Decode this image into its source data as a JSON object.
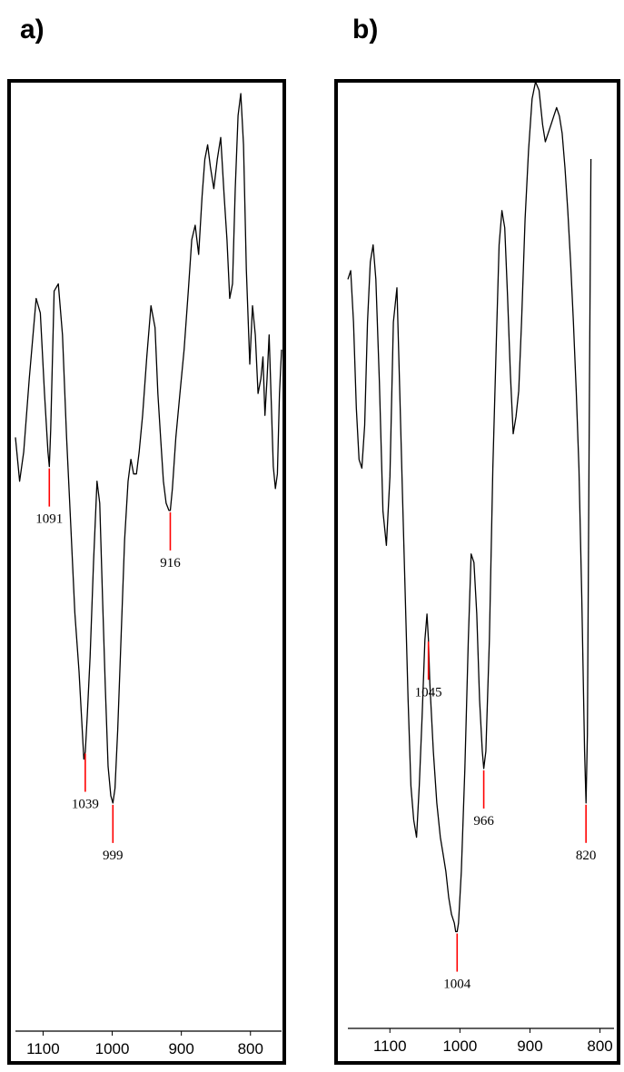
{
  "panels": [
    {
      "id": "a",
      "label": "a)"
    },
    {
      "id": "b",
      "label": "b)"
    }
  ],
  "chart_data": [
    {
      "type": "line",
      "panel": "a)",
      "title": "",
      "xlabel": "",
      "ylabel": "",
      "x_reversed": true,
      "xlim": [
        1140,
        755
      ],
      "xticks": [
        1100,
        1000,
        900,
        800
      ],
      "xtick_labels": [
        "1100",
        "1000",
        "900",
        "800"
      ],
      "y_axis_shown": false,
      "y_scale": "relative intensity 0-100",
      "line_color": "#000000",
      "peak_marker_color": "#ff0000",
      "peaks": [
        {
          "x": 1091,
          "label": "1091"
        },
        {
          "x": 1039,
          "label": "1039"
        },
        {
          "x": 999,
          "label": "999"
        },
        {
          "x": 916,
          "label": "916"
        }
      ],
      "series": [
        {
          "x": [
            1140,
            1134,
            1128,
            1120,
            1110,
            1104,
            1098,
            1093,
            1091,
            1089,
            1084,
            1078,
            1072,
            1066,
            1060,
            1054,
            1048,
            1044,
            1041,
            1039,
            1036,
            1032,
            1027,
            1022,
            1018,
            1014,
            1010,
            1006,
            1002,
            999,
            996,
            992,
            987,
            982,
            977,
            973,
            969,
            965,
            961,
            956,
            950,
            944,
            938,
            934,
            930,
            926,
            922,
            918,
            916,
            913,
            908,
            902,
            896,
            890,
            885,
            880,
            875,
            870,
            866,
            862,
            858,
            853,
            848,
            843,
            838,
            834,
            830,
            826,
            822,
            818,
            814,
            810,
            806,
            801,
            797,
            793,
            789,
            785,
            782,
            779,
            776,
            773,
            770,
            767,
            764,
            761,
            758,
            755
          ],
          "y": [
            52,
            46,
            50,
            60,
            71,
            69,
            58,
            50,
            48,
            53,
            72,
            73,
            66,
            52,
            40,
            28,
            20,
            13,
            8,
            9,
            14,
            22,
            35,
            46,
            43,
            30,
            18,
            7,
            3,
            2,
            4,
            12,
            25,
            38,
            46,
            49,
            47,
            47,
            50,
            55,
            63,
            70,
            67,
            58,
            52,
            46,
            43,
            42,
            42,
            45,
            52,
            58,
            64,
            72,
            79,
            81,
            77,
            85,
            90,
            92,
            89,
            86,
            90,
            93,
            85,
            79,
            71,
            73,
            86,
            96,
            99,
            92,
            75,
            62,
            70,
            66,
            58,
            60,
            63,
            55,
            60,
            66,
            57,
            48,
            45,
            47,
            58,
            64
          ]
        }
      ]
    },
    {
      "type": "line",
      "panel": "b)",
      "title": "",
      "xlabel": "",
      "ylabel": "",
      "x_reversed": true,
      "xlim": [
        1160,
        780
      ],
      "xticks": [
        1100,
        1000,
        900,
        800
      ],
      "xtick_labels": [
        "1100",
        "1000",
        "900",
        "800"
      ],
      "y_axis_shown": false,
      "y_scale": "relative intensity 0-100",
      "line_color": "#000000",
      "peak_marker_color": "#ff0000",
      "peaks": [
        {
          "x": 1045,
          "label": "1045"
        },
        {
          "x": 1004,
          "label": "1004"
        },
        {
          "x": 966,
          "label": "966"
        },
        {
          "x": 820,
          "label": "820"
        }
      ],
      "series": [
        {
          "x": [
            1160,
            1156,
            1152,
            1148,
            1144,
            1140,
            1136,
            1132,
            1128,
            1124,
            1120,
            1115,
            1110,
            1105,
            1100,
            1095,
            1090,
            1086,
            1082,
            1078,
            1074,
            1070,
            1066,
            1062,
            1058,
            1054,
            1050,
            1047,
            1045,
            1043,
            1038,
            1033,
            1028,
            1024,
            1020,
            1016,
            1012,
            1008,
            1006,
            1004,
            1002,
            998,
            993,
            988,
            984,
            980,
            976,
            972,
            968,
            966,
            963,
            958,
            953,
            948,
            944,
            940,
            936,
            932,
            928,
            924,
            920,
            916,
            912,
            907,
            902,
            897,
            892,
            887,
            882,
            878,
            874,
            870,
            866,
            862,
            858,
            854,
            850,
            846,
            842,
            838,
            834,
            830,
            826,
            822,
            820,
            818,
            815,
            813
          ],
          "y": [
            77,
            78,
            72,
            62,
            56,
            55,
            60,
            72,
            79,
            81,
            77,
            65,
            50,
            46,
            54,
            72,
            76,
            64,
            52,
            40,
            28,
            18,
            14,
            12,
            18,
            26,
            35,
            38,
            35,
            30,
            22,
            16,
            12,
            10,
            8,
            5,
            3,
            2,
            1,
            1,
            2,
            8,
            20,
            35,
            45,
            44,
            38,
            28,
            22,
            20,
            22,
            35,
            55,
            70,
            81,
            85,
            83,
            75,
            66,
            59,
            61,
            64,
            72,
            84,
            92,
            98,
            100,
            99,
            95,
            93,
            94,
            95,
            96,
            97,
            96,
            94,
            90,
            85,
            79,
            72,
            64,
            55,
            40,
            22,
            16,
            24,
            65,
            91
          ]
        }
      ]
    }
  ]
}
